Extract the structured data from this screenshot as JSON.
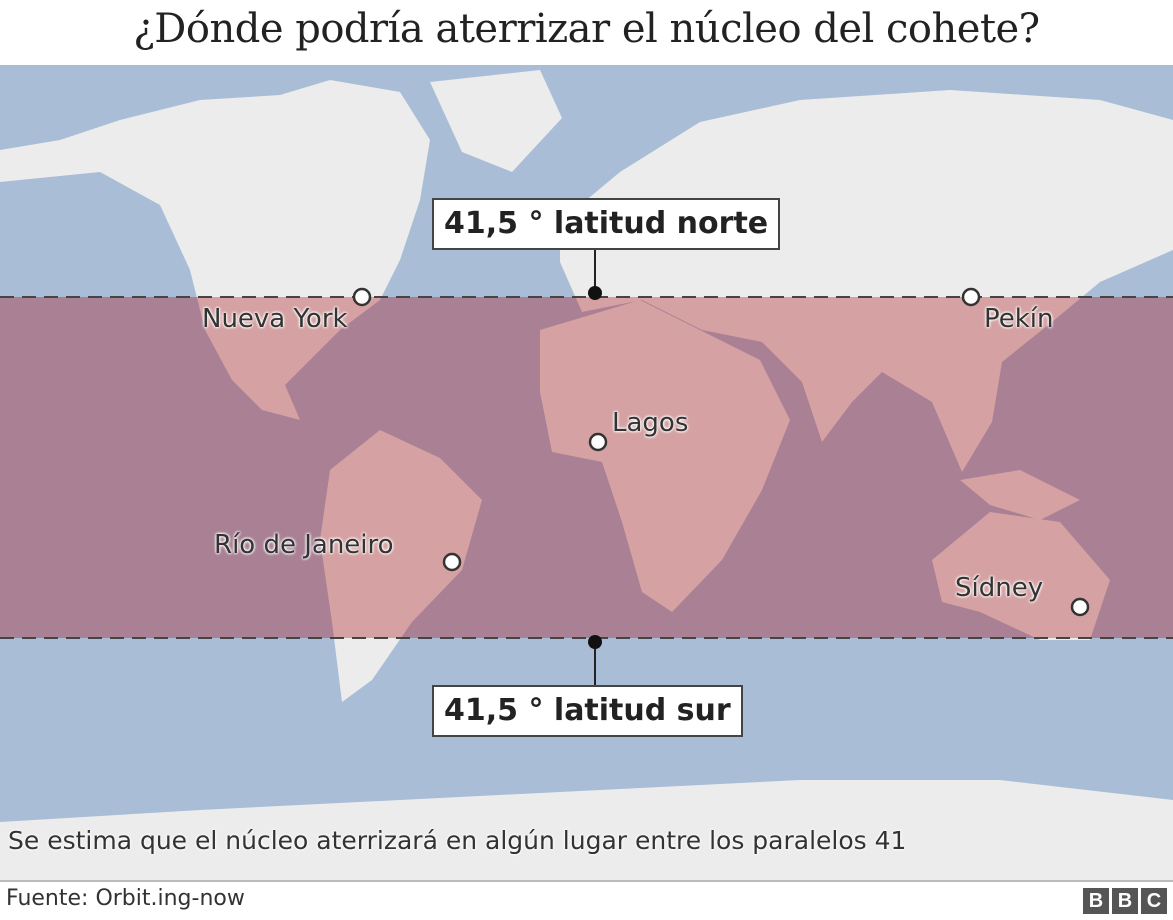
{
  "title": "¿Dónde podría aterrizar el núcleo del cohete?",
  "map": {
    "colors": {
      "ocean": "#aabdd6",
      "land": "#ececec",
      "band_ocean": "#a98094",
      "band_land": "#d5a1a3"
    },
    "north_label": "41,5 ° latitud norte",
    "south_label": "41,5 ° latitud sur",
    "cities": [
      {
        "name": "Nueva York"
      },
      {
        "name": "Pekín"
      },
      {
        "name": "Lagos"
      },
      {
        "name": "Río de Janeiro"
      },
      {
        "name": "Sídney"
      }
    ]
  },
  "caption": "Se estima que el núcleo aterrizará en algún lugar entre los paralelos 41",
  "footer": {
    "source": "Fuente: Orbit.ing-now",
    "logo": "BBC"
  }
}
